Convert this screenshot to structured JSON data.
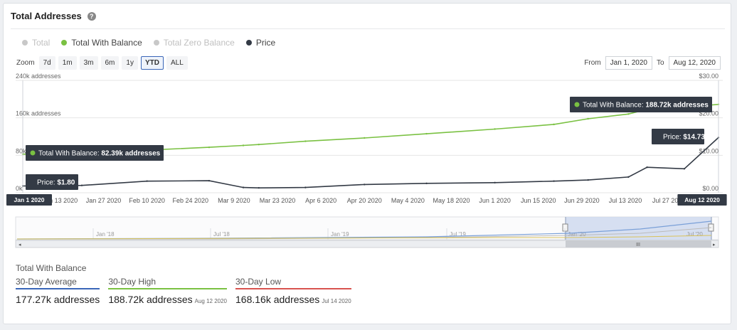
{
  "header": {
    "title": "Total Addresses",
    "help_icon": "question-circle-icon"
  },
  "legend": [
    {
      "label": "Total",
      "color": "#c8c8c8",
      "active": false
    },
    {
      "label": "Total With Balance",
      "color": "#7ac142",
      "active": true
    },
    {
      "label": "Total Zero Balance",
      "color": "#c8c8c8",
      "active": false
    },
    {
      "label": "Price",
      "color": "#333a45",
      "active": true
    }
  ],
  "zoom": {
    "label": "Zoom",
    "buttons": [
      "7d",
      "1m",
      "3m",
      "6m",
      "1y",
      "YTD",
      "ALL"
    ],
    "active": "YTD"
  },
  "range": {
    "from_label": "From",
    "from_value": "Jan 1, 2020",
    "to_label": "To",
    "to_value": "Aug 12, 2020"
  },
  "chart_data": {
    "type": "line",
    "x_dates": [
      "2020-01-01",
      "2020-01-20",
      "2020-02-10",
      "2020-03-01",
      "2020-03-12",
      "2020-03-17",
      "2020-04-01",
      "2020-04-20",
      "2020-05-10",
      "2020-06-01",
      "2020-06-20",
      "2020-07-01",
      "2020-07-14",
      "2020-07-20",
      "2020-08-01",
      "2020-08-12"
    ],
    "xticks": [
      "Jan 13 2020",
      "Jan 27 2020",
      "Feb 10 2020",
      "Feb 24 2020",
      "Mar 9 2020",
      "Mar 23 2020",
      "Apr 6 2020",
      "Apr 20 2020",
      "May 4 2020",
      "May 18 2020",
      "Jun 1 2020",
      "Jun 15 2020",
      "Jun 29 2020",
      "Jul 13 2020",
      "Jul 27 2020"
    ],
    "xtick_dates": [
      "2020-01-13",
      "2020-01-27",
      "2020-02-10",
      "2020-02-24",
      "2020-03-09",
      "2020-03-23",
      "2020-04-06",
      "2020-04-20",
      "2020-05-04",
      "2020-05-18",
      "2020-06-01",
      "2020-06-15",
      "2020-06-29",
      "2020-07-13",
      "2020-07-27"
    ],
    "x_start_label": "Jan 1 2020",
    "x_end_label": "Aug 12 2020",
    "x_start_date": "2020-01-01",
    "x_end_date": "2020-08-12",
    "y_left": {
      "ticks": [
        "240k addresses",
        "160k addresses",
        "80k addresses",
        "0k"
      ],
      "values": [
        240000,
        160000,
        80000,
        0
      ],
      "ylim": [
        0,
        240000
      ]
    },
    "y_right": {
      "ticks": [
        "$30.00",
        "$20.00",
        "$10.00",
        "$0.00"
      ],
      "values": [
        30,
        20,
        10,
        0
      ],
      "ylim": [
        0,
        30
      ]
    },
    "series": [
      {
        "name": "Total With Balance",
        "color": "#7ac142",
        "axis": "left",
        "values": [
          82390,
          86000,
          91000,
          97000,
          101000,
          103000,
          110000,
          117000,
          126000,
          136000,
          146000,
          158000,
          168160,
          178000,
          183000,
          188720
        ]
      },
      {
        "name": "Price",
        "color": "#333a45",
        "axis": "right",
        "values": [
          1.8,
          1.95,
          3.1,
          3.2,
          1.4,
          1.3,
          1.4,
          2.2,
          2.5,
          2.7,
          3.1,
          3.4,
          4.2,
          6.8,
          6.4,
          14.73
        ]
      }
    ],
    "tooltips": [
      {
        "label": "Total With Balance:",
        "value": "82.39k addresses",
        "series": 0,
        "dot_color": "#7ac142"
      },
      {
        "label": "Price:",
        "value": "$1.80",
        "series": 1
      },
      {
        "label": "Total With Balance:",
        "value": "188.72k addresses",
        "series": 0,
        "dot_color": "#7ac142"
      },
      {
        "label": "Price:",
        "value": "$14.73",
        "series": 1
      }
    ],
    "grid": true
  },
  "navigator": {
    "ticks": [
      "Jan '18",
      "Jul '18",
      "Jan '19",
      "Jul '19",
      "Jan '20",
      "Jul '20"
    ],
    "scrollbar_grip": "III"
  },
  "stats": {
    "title": "Total With Balance",
    "items": [
      {
        "label": "30-Day Average",
        "value": "177.27k addresses",
        "date": "",
        "color": "#3a66b8"
      },
      {
        "label": "30-Day High",
        "value": "188.72k addresses",
        "date": "Aug 12 2020",
        "color": "#7ac142"
      },
      {
        "label": "30-Day Low",
        "value": "168.16k addresses",
        "date": "Jul 14 2020",
        "color": "#d9534f"
      }
    ]
  }
}
